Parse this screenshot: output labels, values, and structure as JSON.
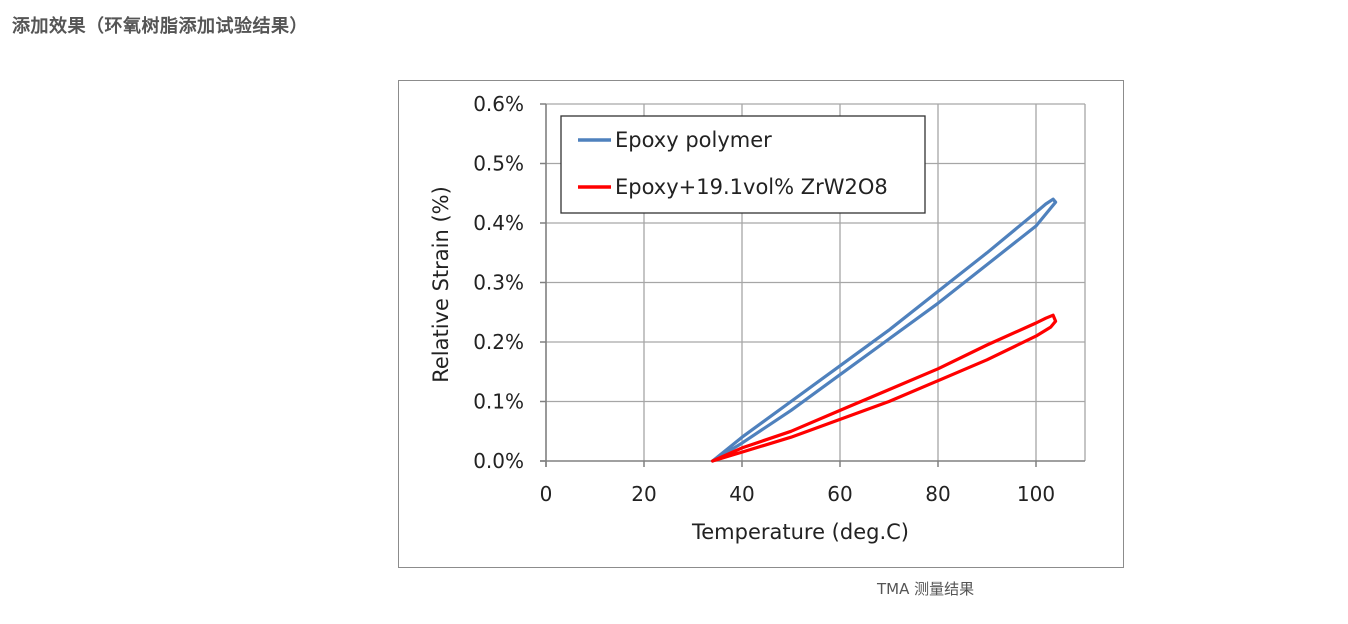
{
  "page": {
    "heading": "添加效果（环氧树脂添加试验结果）",
    "caption": "TMA 测量结果"
  },
  "chart_data": {
    "type": "line",
    "title": "",
    "xlabel": "Temperature (deg.C)",
    "ylabel": "Relative Strain (%)",
    "xlim": [
      0,
      110
    ],
    "ylim": [
      0.0,
      0.6
    ],
    "x_ticks": [
      0,
      20,
      40,
      60,
      80,
      100
    ],
    "x_tick_labels": [
      "0",
      "20",
      "40",
      "60",
      "80",
      "100"
    ],
    "y_ticks": [
      0.0,
      0.1,
      0.2,
      0.3,
      0.4,
      0.5,
      0.6
    ],
    "y_tick_labels": [
      "0.0%",
      "0.1%",
      "0.2%",
      "0.3%",
      "0.4%",
      "0.5%",
      "0.6%"
    ],
    "grid": true,
    "legend_position": "top-left",
    "series": [
      {
        "name": "Epoxy polymer",
        "color": "#4f81bd",
        "x": [
          34,
          40,
          50,
          60,
          70,
          80,
          90,
          100,
          103,
          104,
          103.5,
          102,
          100,
          90,
          80,
          70,
          60,
          50,
          40,
          34
        ],
        "y": [
          0.0,
          0.03,
          0.085,
          0.145,
          0.205,
          0.265,
          0.33,
          0.395,
          0.425,
          0.435,
          0.44,
          0.432,
          0.418,
          0.35,
          0.285,
          0.22,
          0.16,
          0.1,
          0.04,
          0.0
        ]
      },
      {
        "name": "Epoxy+19.1vol% ZrW2O8",
        "color": "#ff0000",
        "x": [
          34,
          40,
          50,
          60,
          70,
          80,
          90,
          100,
          103,
          104,
          103.5,
          102,
          100,
          90,
          80,
          70,
          60,
          50,
          40,
          34
        ],
        "y": [
          0.0,
          0.015,
          0.04,
          0.07,
          0.1,
          0.135,
          0.17,
          0.21,
          0.225,
          0.235,
          0.245,
          0.24,
          0.232,
          0.195,
          0.155,
          0.12,
          0.085,
          0.05,
          0.022,
          0.0
        ]
      }
    ]
  }
}
